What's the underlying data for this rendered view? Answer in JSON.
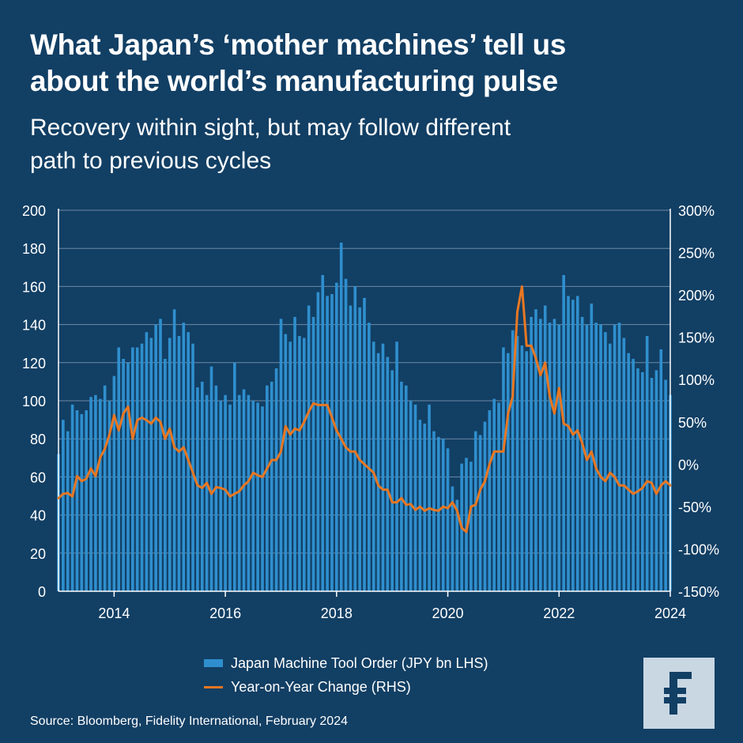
{
  "title": {
    "line1": "What Japan’s ‘mother machines’ tell us",
    "line2": "about the world’s manufacturing pulse"
  },
  "subtitle": {
    "line1": "Recovery within sight, but may follow different",
    "line2": "path to previous cycles"
  },
  "legend": {
    "bars_label": "Japan Machine Tool Order (JPY bn LHS)",
    "line_label": "Year-on-Year Change (RHS)"
  },
  "source": "Source: Bloomberg, Fidelity International, February 2024",
  "colors": {
    "background": "#123f64",
    "bars": "#2f8fce",
    "line": "#e87722",
    "grid": "#6d8aa6",
    "logo_bg": "#c9d7e3",
    "logo_fg": "#123f64"
  },
  "logo_icon": "fidelity-f-logo",
  "chart_data": {
    "type": "bar+line",
    "x_start": "2013-01",
    "x_end": "2024-01",
    "frequency": "monthly",
    "x_ticks": [
      "2014",
      "2016",
      "2018",
      "2020",
      "2022",
      "2024"
    ],
    "y_left": {
      "label": "JPY bn",
      "range": [
        0,
        200
      ],
      "ticks": [
        "0",
        "20",
        "40",
        "60",
        "80",
        "100",
        "120",
        "140",
        "160",
        "180",
        "200"
      ]
    },
    "y_right": {
      "label": "%",
      "range": [
        -150,
        300
      ],
      "ticks": [
        "-150%",
        "-100%",
        "-50%",
        "0%",
        "50%",
        "100%",
        "150%",
        "200%",
        "250%",
        "300%"
      ]
    },
    "grid": true,
    "legend_position": "bottom-center",
    "series": [
      {
        "name": "Japan Machine Tool Order (JPY bn LHS)",
        "type": "bar",
        "axis": "left",
        "values": [
          72,
          90,
          84,
          98,
          95,
          93,
          95,
          102,
          103,
          101,
          108,
          100,
          113,
          128,
          122,
          120,
          128,
          128,
          130,
          136,
          133,
          140,
          143,
          122,
          133,
          148,
          134,
          141,
          136,
          130,
          107,
          110,
          103,
          118,
          108,
          100,
          103,
          98,
          120,
          103,
          106,
          103,
          100,
          99,
          97,
          108,
          110,
          117,
          143,
          135,
          131,
          144,
          134,
          133,
          150,
          144,
          157,
          166,
          155,
          156,
          162,
          183,
          164,
          150,
          160,
          149,
          154,
          141,
          131,
          125,
          130,
          123,
          116,
          131,
          110,
          108,
          100,
          98,
          90,
          88,
          98,
          84,
          81,
          80,
          75,
          55,
          48,
          67,
          70,
          68,
          84,
          82,
          89,
          95,
          101,
          99,
          128,
          125,
          137,
          134,
          129,
          126,
          144,
          148,
          143,
          150,
          141,
          143,
          140,
          166,
          155,
          153,
          155,
          144,
          140,
          151,
          141,
          140,
          136,
          130,
          140,
          141,
          133,
          125,
          122,
          117,
          115,
          134,
          112,
          116,
          127,
          111,
          103
        ]
      },
      {
        "name": "Year-on-Year Change (RHS)",
        "type": "line",
        "axis": "right",
        "values": [
          -40,
          -35,
          -34,
          -38,
          -14,
          -20,
          -17,
          -5,
          -14,
          8,
          18,
          35,
          58,
          40,
          60,
          68,
          30,
          52,
          55,
          52,
          48,
          55,
          50,
          30,
          42,
          20,
          15,
          20,
          5,
          -10,
          -25,
          -28,
          -22,
          -35,
          -27,
          -28,
          -30,
          -38,
          -35,
          -32,
          -25,
          -20,
          -10,
          -13,
          -15,
          -5,
          5,
          5,
          15,
          45,
          35,
          42,
          40,
          50,
          62,
          72,
          70,
          70,
          70,
          55,
          40,
          30,
          20,
          15,
          15,
          5,
          0,
          -5,
          -10,
          -25,
          -30,
          -30,
          -45,
          -45,
          -40,
          -48,
          -47,
          -54,
          -50,
          -55,
          -52,
          -54,
          -55,
          -50,
          -52,
          -45,
          -55,
          -75,
          -80,
          -50,
          -48,
          -30,
          -20,
          0,
          15,
          15,
          15,
          60,
          80,
          180,
          210,
          140,
          140,
          125,
          105,
          120,
          80,
          60,
          90,
          48,
          45,
          35,
          40,
          25,
          5,
          15,
          -5,
          -15,
          -20,
          -10,
          -15,
          -25,
          -25,
          -30,
          -35,
          -32,
          -28,
          -20,
          -22,
          -35,
          -25,
          -20,
          -25
        ]
      }
    ]
  }
}
